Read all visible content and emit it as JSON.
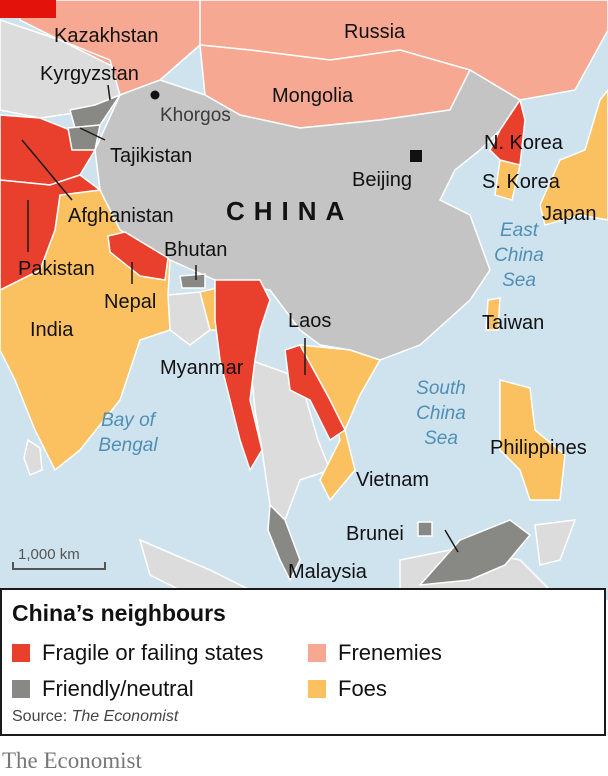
{
  "colors": {
    "sea": "#cfe3ee",
    "china": "#c4c4c4",
    "other_land": "#dcdcdc",
    "fragile": "#e8402c",
    "friendly": "#888884",
    "frenemies": "#f6a892",
    "foes": "#fbc05f",
    "border": "#ffffff",
    "brand_red": "#e3120b"
  },
  "map": {
    "countries": {
      "kazakhstan": "Kazakhstan",
      "russia": "Russia",
      "kyrgyzstan": "Kyrgyzstan",
      "mongolia": "Mongolia",
      "tajikistan": "Tajikistan",
      "n_korea": "N. Korea",
      "s_korea": "S. Korea",
      "japan": "Japan",
      "afghanistan": "Afghanistan",
      "china": "CHINA",
      "pakistan": "Pakistan",
      "bhutan": "Bhutan",
      "nepal": "Nepal",
      "india": "India",
      "taiwan": "Taiwan",
      "laos": "Laos",
      "myanmar": "Myanmar",
      "philippines": "Philippines",
      "vietnam": "Vietnam",
      "brunei": "Brunei",
      "malaysia": "Malaysia"
    },
    "cities": {
      "khorgos": "Khorgos",
      "beijing": "Beijing"
    },
    "seas": {
      "east_china": [
        "East",
        "China",
        "Sea"
      ],
      "south_china": [
        "South",
        "China",
        "Sea"
      ],
      "bay_of_bengal": [
        "Bay of",
        "Bengal"
      ]
    },
    "scale_label": "1,000 km"
  },
  "legend": {
    "title": "China’s neighbours",
    "items": [
      {
        "label": "Fragile or failing states",
        "color": "#e8402c"
      },
      {
        "label": "Frenemies",
        "color": "#f6a892"
      },
      {
        "label": "Friendly/neutral",
        "color": "#888884"
      },
      {
        "label": "Foes",
        "color": "#fbc05f"
      }
    ],
    "source_prefix": "Source: ",
    "source_name": "The Economist"
  },
  "brand": "The Economist"
}
